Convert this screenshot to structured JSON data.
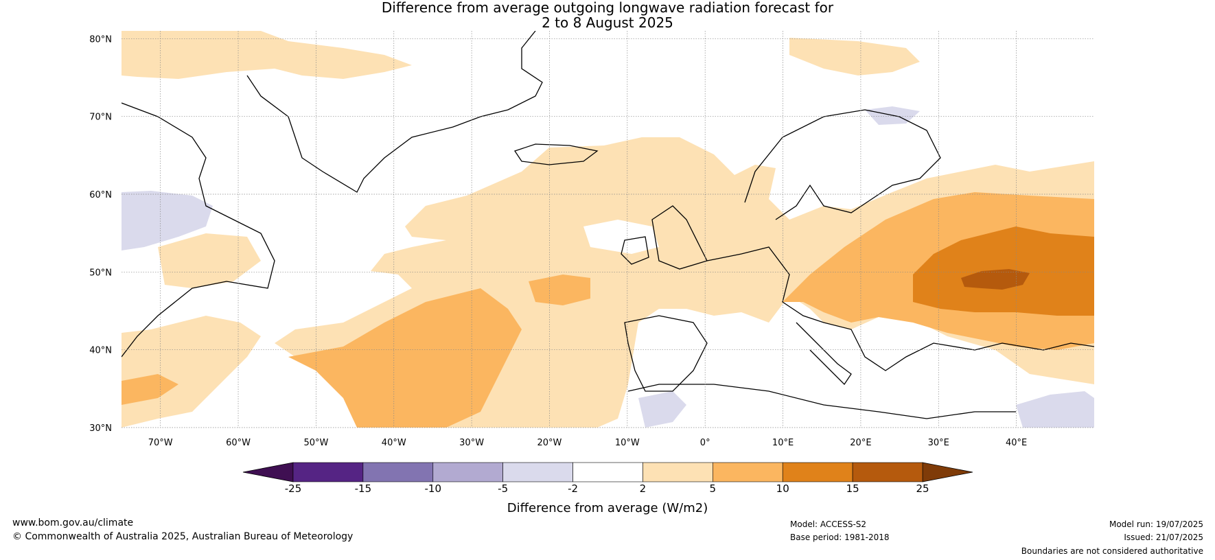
{
  "title": {
    "line1": "Difference from average outgoing longwave radiation forecast for",
    "line2": "2 to 8 August 2025"
  },
  "map": {
    "lat_ticks": [
      "30°N",
      "40°N",
      "50°N",
      "60°N",
      "70°N",
      "80°N"
    ],
    "lon_ticks": [
      "70°W",
      "60°W",
      "50°W",
      "40°W",
      "30°W",
      "20°W",
      "10°W",
      "0°",
      "10°E",
      "20°E",
      "30°E",
      "40°E"
    ],
    "graticule": "dotted grey lines every 10°",
    "extent": {
      "lon": [
        "75°W",
        "50°E"
      ],
      "lat": [
        "30°N",
        "81°N"
      ]
    }
  },
  "colorbar": {
    "label": "Difference from average (W/m2)",
    "ticks": [
      "-25",
      "-15",
      "-10",
      "-5",
      "-2",
      "2",
      "5",
      "10",
      "15",
      "25"
    ],
    "colors": [
      "#3f0f52",
      "#552484",
      "#8274b1",
      "#b2aad1",
      "#dadaec",
      "#ffffff",
      "#fde1b4",
      "#fbb660",
      "#e0821a",
      "#b55a0d",
      "#7f3b08"
    ]
  },
  "footer": {
    "url": "www.bom.gov.au/climate",
    "copyright": "© Commonwealth of Australia 2025, Australian Bureau of Meteorology",
    "model": "Model: ACCESS-S2",
    "base_period": "Base period: 1981-2018",
    "model_run": "Model run: 19/07/2025",
    "issued": "Issued: 21/07/2025",
    "disclaimer": "Boundaries are not considered authoritative"
  }
}
